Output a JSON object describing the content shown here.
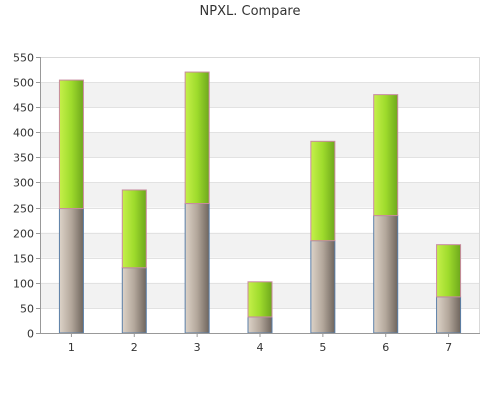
{
  "chart_data": {
    "type": "bar",
    "stacked": true,
    "title": "NPXL. Compare",
    "xlabel": "",
    "ylabel": "",
    "categories": [
      "1",
      "2",
      "3",
      "4",
      "5",
      "6",
      "7"
    ],
    "series": [
      {
        "values": [
          248,
          130,
          258,
          32,
          184,
          234,
          72
        ],
        "color": "#9b8e82"
      },
      {
        "values": [
          256,
          155,
          262,
          70,
          198,
          241,
          104
        ],
        "color": "#8fd12a"
      }
    ],
    "ylim": [
      0,
      550
    ],
    "yticks": [
      0,
      50,
      100,
      150,
      200,
      250,
      300,
      350,
      400,
      450,
      500,
      550
    ],
    "grid": true,
    "band_color": "#f2f2f2",
    "legend": "none"
  }
}
